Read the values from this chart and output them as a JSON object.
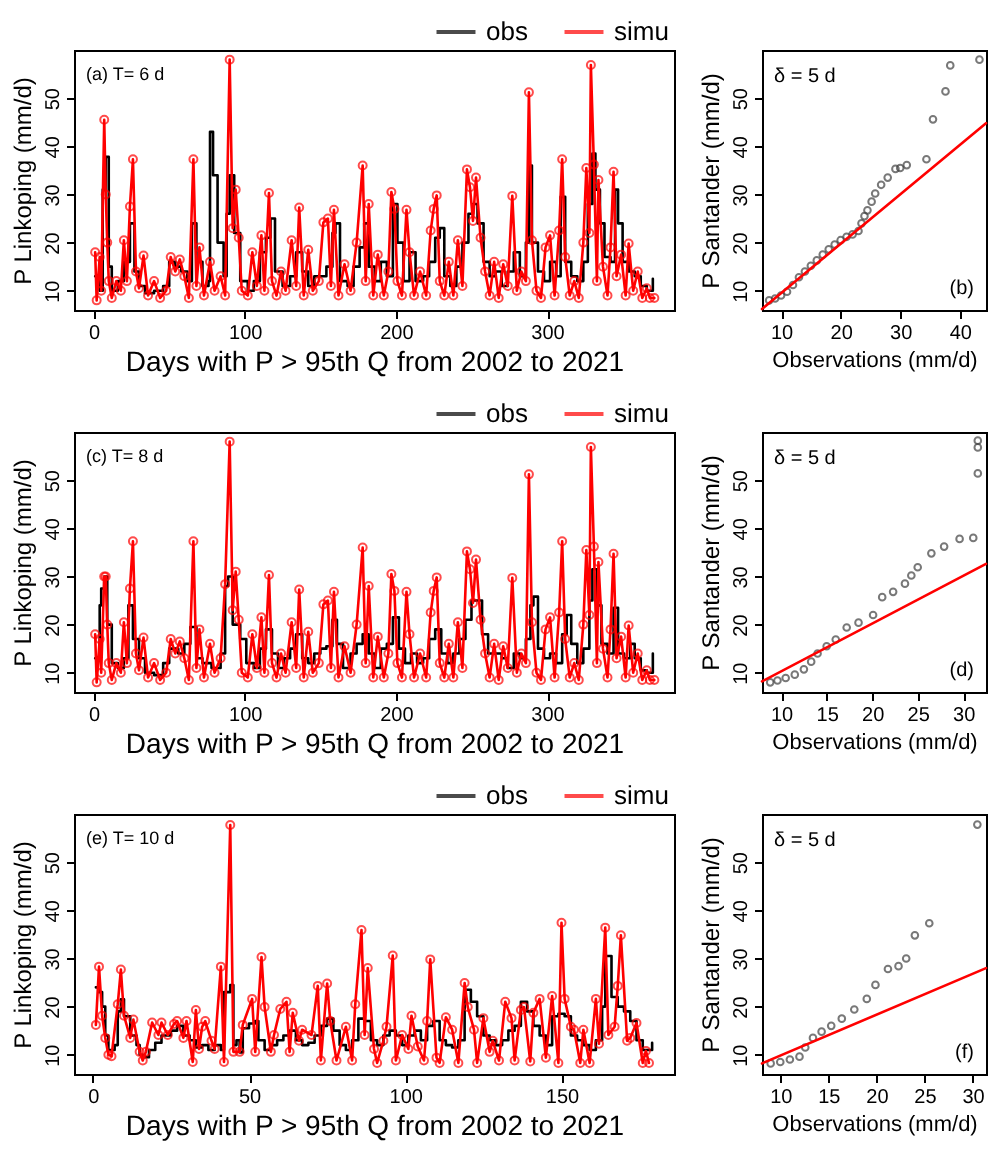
{
  "chart_data": [
    {
      "type": "line",
      "xlabel": "Days with P > 95th Q from 2002 to 2021",
      "ylabel": "P Linkoping (mm/d)",
      "annotations": [
        "(a)   T= 6 d"
      ],
      "xlim": [
        -13,
        384
      ],
      "ylim": [
        6,
        60
      ],
      "xticks": [
        0,
        100,
        200,
        300
      ],
      "yticks": [
        10,
        20,
        30,
        40,
        50
      ],
      "grid": false,
      "legend": "top right",
      "series": [
        {
          "name": "obs",
          "type": "step",
          "color": "#000000",
          "x": [
            1,
            4,
            6,
            8,
            10,
            12,
            16,
            20,
            24,
            27,
            30,
            34,
            40,
            46,
            50,
            54,
            58,
            62,
            65,
            68,
            72,
            76,
            77,
            79,
            82,
            86,
            88,
            90,
            93,
            97,
            102,
            106,
            110,
            114,
            117,
            120,
            125,
            130,
            134,
            138,
            142,
            146,
            150,
            154,
            158,
            160,
            163,
            168,
            172,
            176,
            179,
            182,
            186,
            190,
            194,
            198,
            201,
            205,
            209,
            213,
            218,
            222,
            226,
            229,
            232,
            236,
            240,
            244,
            248,
            251,
            254,
            258,
            262,
            266,
            270,
            274,
            278,
            282,
            286,
            288,
            290,
            294,
            298,
            302,
            306,
            309,
            312,
            316,
            320,
            324,
            327,
            330,
            332,
            335,
            338,
            342,
            345,
            347,
            350,
            354,
            358,
            362,
            366,
            370
          ],
          "values": [
            13,
            10,
            31,
            37.8,
            15,
            10,
            12,
            16,
            24,
            14,
            11,
            9.5,
            10,
            11,
            16,
            15,
            14,
            12,
            24,
            16,
            11,
            12,
            43,
            34,
            20,
            13,
            26,
            34,
            22,
            12,
            10,
            12,
            18,
            21,
            25,
            14,
            11,
            13,
            18,
            14,
            11,
            13,
            13,
            15,
            22,
            24,
            12,
            11,
            15,
            19,
            24,
            15,
            12,
            16,
            13,
            28,
            20,
            12,
            18,
            12,
            13,
            16,
            21,
            23,
            13,
            11,
            15,
            20,
            26,
            28,
            24,
            16,
            13,
            14,
            11,
            14,
            18,
            13,
            20,
            36,
            20,
            14,
            12,
            16,
            13,
            29.5,
            16,
            13,
            12,
            16,
            28,
            38.5,
            31,
            24,
            17,
            16,
            31,
            24,
            16,
            14,
            13,
            11,
            10,
            12.5
          ]
        },
        {
          "name": "simu",
          "marker": "circle",
          "color": "#ff0000",
          "x": [
            1,
            2,
            4,
            5,
            7,
            8,
            9,
            10,
            12,
            15,
            18,
            20,
            22,
            24,
            26,
            28,
            30,
            33,
            36,
            40,
            44,
            48,
            51,
            54,
            57,
            60,
            63,
            66,
            68,
            70,
            73,
            77,
            80,
            84,
            87,
            90,
            92,
            94,
            96,
            98,
            102,
            105,
            108,
            111,
            113,
            116,
            118,
            121,
            124,
            127,
            131,
            134,
            136,
            139,
            142,
            145,
            149,
            152,
            155,
            157,
            159,
            162,
            166,
            170,
            174,
            178,
            180,
            182,
            185,
            188,
            192,
            195,
            197,
            199,
            201,
            204,
            207,
            209,
            212,
            216,
            220,
            223,
            225,
            227,
            229,
            232,
            235,
            238,
            241,
            244,
            247,
            249,
            251,
            253,
            256,
            259,
            262,
            265,
            268,
            271,
            274,
            277,
            280,
            283,
            286,
            288,
            290,
            293,
            296,
            299,
            302,
            305,
            308,
            310,
            312,
            315,
            318,
            321,
            324,
            326,
            328,
            329,
            331,
            333,
            334,
            337,
            340,
            342,
            344,
            346,
            349,
            352,
            354,
            357,
            360,
            363,
            366,
            368,
            371
          ],
          "values": [
            18,
            8,
            17,
            10,
            45.5,
            30,
            20,
            12,
            8.5,
            12,
            10,
            20.5,
            12,
            27.5,
            37.3,
            14,
            10.5,
            17.3,
            9,
            12,
            8.5,
            10,
            17,
            14,
            16.5,
            13,
            8.5,
            37.3,
            11,
            19,
            9,
            16,
            10,
            13,
            9,
            58,
            23,
            31,
            21,
            10,
            9,
            18,
            11,
            21.5,
            10,
            30.3,
            12,
            9,
            14,
            10,
            20.5,
            11,
            27.3,
            9,
            18.5,
            10,
            12,
            24.2,
            25,
            11,
            26.8,
            9,
            15.5,
            10,
            20,
            36,
            12,
            28,
            9,
            17.5,
            9,
            14,
            30.5,
            27,
            12,
            9,
            26.8,
            18,
            9,
            14,
            9,
            22.5,
            27,
            29.8,
            12,
            9,
            16,
            9,
            20.5,
            11,
            35.2,
            31.5,
            24.5,
            33.5,
            21,
            14,
            9,
            16,
            8.5,
            15.5,
            11,
            29.7,
            10,
            14,
            12,
            51.2,
            20.5,
            10,
            8.5,
            19,
            21.5,
            9,
            22.5,
            37.3,
            17,
            9,
            12,
            8.5,
            20,
            35.5,
            22,
            56.9,
            36.2,
            12,
            33,
            15,
            9,
            19,
            34.7,
            13,
            17.5,
            9,
            19.8,
            10,
            14,
            8.5,
            10.5,
            8.5,
            8.5
          ]
        }
      ]
    },
    {
      "type": "scatter",
      "xlabel": "Observations (mm/d)",
      "ylabel": "P Santander (mm/d)",
      "annotations": [
        "δ = 5 d",
        "(b)"
      ],
      "xlim": [
        6.8,
        44.4
      ],
      "ylim": [
        6,
        60
      ],
      "xticks": [
        10,
        20,
        30,
        40
      ],
      "yticks": [
        10,
        20,
        30,
        40,
        50
      ],
      "grid": false,
      "series": [
        {
          "marker": "circle",
          "color": "#404040",
          "x": [
            8,
            9,
            10,
            11,
            12,
            13,
            14,
            15,
            16,
            17,
            18,
            19,
            20,
            21,
            22,
            23,
            23.5,
            24,
            24.5,
            25.2,
            25.8,
            26.8,
            27.9,
            29.2,
            30,
            31.1,
            34.4,
            35.5,
            37.6,
            38.4,
            43.3
          ],
          "values": [
            8,
            8.4,
            9,
            9.8,
            11.2,
            12.8,
            14,
            15.2,
            16.3,
            17.5,
            18.6,
            19.6,
            20.5,
            21.2,
            21.7,
            22.4,
            24,
            25.5,
            26.7,
            28.5,
            30.2,
            32,
            33.5,
            35.3,
            35.5,
            36.1,
            37.3,
            45.6,
            51.4,
            56.8,
            58
          ]
        },
        {
          "type": "line",
          "color": "#ff0000",
          "x": [
            6.8,
            44.4
          ],
          "values": [
            6.2,
            44.8
          ]
        }
      ]
    },
    {
      "type": "line",
      "xlabel": "Days with P > 95th Q from 2002 to 2021",
      "ylabel": "P Linkoping (mm/d)",
      "annotations": [
        "(c)   T= 8 d"
      ],
      "xlim": [
        -13,
        384
      ],
      "ylim": [
        6,
        60
      ],
      "xticks": [
        0,
        100,
        200,
        300
      ],
      "yticks": [
        10,
        20,
        30,
        40,
        50
      ],
      "grid": false,
      "legend": "top right",
      "series": [
        {
          "name": "obs",
          "type": "step",
          "color": "#000000",
          "x": [
            1,
            4,
            5,
            7,
            9,
            12,
            16,
            20,
            23,
            26,
            30,
            34,
            40,
            46,
            50,
            56,
            60,
            64,
            68,
            72,
            78,
            84,
            87,
            89,
            92,
            97,
            101,
            106,
            110,
            114,
            118,
            122,
            126,
            130,
            134,
            138,
            142,
            146,
            150,
            154,
            158,
            161,
            165,
            170,
            174,
            178,
            182,
            186,
            190,
            194,
            198,
            202,
            206,
            210,
            214,
            218,
            222,
            226,
            230,
            234,
            238,
            242,
            246,
            250,
            254,
            257,
            261,
            266,
            270,
            274,
            278,
            282,
            286,
            289,
            291,
            294,
            298,
            302,
            306,
            310,
            313,
            316,
            320,
            324,
            328,
            330,
            333,
            336,
            340,
            344,
            347,
            351,
            355,
            358,
            362,
            366,
            370
          ],
          "values": [
            13,
            24,
            27.5,
            30,
            20,
            12,
            11,
            13,
            24,
            17,
            13,
            10,
            9.5,
            12,
            15,
            14,
            16,
            19.5,
            13,
            12,
            11,
            14,
            28,
            30,
            20,
            17,
            12,
            11,
            15,
            19,
            14,
            11,
            13,
            15,
            18,
            13,
            12,
            14,
            15,
            15.5,
            21,
            16,
            11,
            14,
            16,
            18,
            14,
            11,
            15,
            16,
            21.5,
            15,
            12,
            14,
            12,
            13,
            17,
            19,
            14,
            12,
            14,
            17,
            21,
            25,
            25,
            18,
            14,
            14,
            13,
            11,
            14,
            13,
            17,
            24,
            25.8,
            15,
            13,
            14,
            12,
            18,
            22,
            16,
            12,
            15,
            25,
            31.5,
            24,
            16,
            14,
            23.5,
            14,
            13,
            16,
            13,
            10.5,
            10,
            14
          ]
        },
        {
          "name": "simu",
          "marker": "circle",
          "color": "#ff0000",
          "x": [
            1,
            2,
            4,
            5,
            7,
            8,
            9,
            10,
            12,
            15,
            18,
            20,
            22,
            24,
            26,
            28,
            30,
            33,
            36,
            40,
            44,
            48,
            51,
            54,
            57,
            60,
            63,
            66,
            68,
            70,
            73,
            77,
            80,
            84,
            87,
            90,
            92,
            94,
            96,
            98,
            102,
            105,
            108,
            111,
            113,
            116,
            118,
            121,
            124,
            127,
            131,
            134,
            136,
            139,
            142,
            145,
            149,
            152,
            155,
            157,
            159,
            162,
            166,
            170,
            174,
            178,
            180,
            182,
            185,
            188,
            192,
            195,
            197,
            199,
            201,
            204,
            207,
            209,
            212,
            216,
            220,
            223,
            225,
            227,
            229,
            232,
            235,
            238,
            241,
            244,
            247,
            249,
            251,
            253,
            256,
            259,
            262,
            265,
            268,
            271,
            274,
            277,
            280,
            283,
            286,
            288,
            290,
            293,
            296,
            299,
            302,
            305,
            308,
            310,
            312,
            315,
            318,
            321,
            324,
            326,
            328,
            329,
            331,
            333,
            334,
            337,
            340,
            342,
            344,
            346,
            349,
            352,
            354,
            357,
            360,
            363,
            366,
            368,
            371
          ],
          "values": [
            18,
            8,
            17,
            10,
            30,
            30,
            20,
            12,
            8.5,
            12,
            10,
            20.5,
            12,
            27.5,
            37.3,
            14,
            10.5,
            17.3,
            9,
            12,
            8.5,
            10,
            17,
            14,
            16.5,
            13,
            8.5,
            37.3,
            11,
            19,
            9,
            16,
            10,
            13,
            28.4,
            58,
            23,
            31,
            21,
            10,
            9,
            18,
            11,
            21.5,
            10,
            30.3,
            12,
            9,
            14,
            10,
            20.5,
            11,
            27.3,
            9,
            18.5,
            10,
            12,
            24.2,
            25,
            11,
            26.8,
            9,
            15.5,
            10,
            20,
            36,
            12,
            28,
            9,
            17.5,
            9,
            14,
            30.5,
            27,
            12,
            9,
            26.8,
            18,
            9,
            14,
            9,
            22.5,
            27,
            29.8,
            12,
            9,
            16,
            9,
            20.5,
            11,
            35.2,
            31.5,
            24.5,
            33.5,
            21,
            14,
            9,
            16,
            8.5,
            15.5,
            11,
            29.7,
            10,
            14,
            12,
            51.2,
            20.5,
            10,
            8.5,
            19,
            21.5,
            9,
            22.5,
            37.3,
            17,
            9,
            12,
            8.5,
            20,
            35.5,
            22,
            56.9,
            36.2,
            12,
            33,
            15,
            9,
            19,
            34.7,
            13,
            17.5,
            9,
            19.8,
            10,
            14,
            8.5,
            10.5,
            8.5,
            8.5
          ]
        }
      ]
    },
    {
      "type": "scatter",
      "xlabel": "Observations (mm/d)",
      "ylabel": "P Santander (mm/d)",
      "annotations": [
        "δ = 5 d",
        "(d)"
      ],
      "xlim": [
        7.9,
        32.5
      ],
      "ylim": [
        6,
        60
      ],
      "xticks": [
        10,
        15,
        20,
        25,
        30
      ],
      "yticks": [
        10,
        20,
        30,
        40,
        50
      ],
      "grid": false,
      "series": [
        {
          "marker": "circle",
          "color": "#404040",
          "x": [
            8.8,
            9.6,
            10.5,
            11.5,
            12.5,
            13.3,
            14,
            15,
            16,
            17.2,
            18.5,
            20.1,
            21.1,
            22.3,
            23.6,
            24.3,
            25,
            26.5,
            27.9,
            29.6,
            31.1,
            31.6,
            31.6,
            31.6
          ],
          "values": [
            8,
            8.4,
            8.9,
            9.6,
            10.7,
            12.3,
            14,
            15.5,
            16.9,
            19.4,
            20.4,
            22,
            25.7,
            26.8,
            28.5,
            30.2,
            31.9,
            34.8,
            36.2,
            37.8,
            38,
            51.4,
            56.8,
            58.2
          ]
        },
        {
          "type": "line",
          "color": "#ff0000",
          "x": [
            7.9,
            32.5
          ],
          "values": [
            8.2,
            32.6
          ]
        }
      ]
    },
    {
      "type": "line",
      "xlabel": "Days with P > 95th Q from 2002 to 2021",
      "ylabel": "P Linkoping (mm/d)",
      "annotations": [
        "(e)   T= 10 d"
      ],
      "xlim": [
        -6,
        186
      ],
      "ylim": [
        6,
        60
      ],
      "xticks": [
        0,
        50,
        100,
        150
      ],
      "yticks": [
        10,
        20,
        30,
        40,
        50
      ],
      "grid": false,
      "legend": "top right",
      "series": [
        {
          "name": "obs",
          "type": "step",
          "color": "#000000",
          "x": [
            1,
            2,
            3,
            4,
            5,
            7,
            8,
            9,
            10,
            12,
            14,
            15,
            16,
            18,
            20,
            22,
            25,
            27,
            29,
            31,
            33,
            35,
            37,
            39,
            41,
            42,
            44,
            45,
            46,
            47,
            48,
            50,
            52,
            53,
            55,
            57,
            59,
            61,
            63,
            65,
            67,
            69,
            71,
            73,
            75,
            77,
            79,
            81,
            83,
            85,
            87,
            89,
            91,
            93,
            95,
            97,
            99,
            101,
            103,
            105,
            107,
            109,
            111,
            113,
            115,
            117,
            119,
            121,
            123,
            125,
            127,
            129,
            131,
            133,
            135,
            137,
            139,
            141,
            143,
            145,
            147,
            149,
            151,
            153,
            155,
            157,
            159,
            161,
            163,
            164,
            166,
            168,
            170,
            172,
            174,
            176,
            178,
            179
          ],
          "values": [
            24,
            23,
            20,
            14,
            11,
            12,
            19,
            21.5,
            18,
            14,
            12,
            10,
            9.5,
            11,
            12.5,
            14,
            15,
            16,
            14,
            13,
            11.5,
            12,
            11,
            12,
            11,
            23,
            24.5,
            12,
            13,
            10.5,
            15.5,
            16.5,
            17,
            13,
            11,
            12,
            13,
            14,
            15,
            13,
            12,
            12.5,
            14,
            16,
            17.5,
            15,
            12,
            11,
            13,
            17.5,
            17,
            13,
            12,
            14,
            15,
            14,
            12,
            14,
            15,
            13,
            16,
            17,
            13,
            12,
            11.5,
            13,
            23.5,
            21,
            18,
            14,
            13,
            12,
            13,
            15,
            16,
            21,
            19,
            16,
            14,
            12,
            18,
            18.5,
            18,
            14,
            13,
            12,
            11,
            13,
            20,
            30.5,
            22,
            20,
            19,
            17,
            13,
            11,
            11,
            12.5
          ]
        },
        {
          "name": "simu",
          "marker": "circle",
          "color": "#ff0000",
          "x": [
            1,
            2,
            3,
            4,
            5,
            6,
            8,
            9,
            10,
            12,
            13,
            15,
            16,
            17,
            19,
            21,
            22,
            24,
            26,
            27,
            29,
            30,
            32,
            33,
            34,
            35,
            36,
            38,
            39,
            41,
            42,
            44,
            45,
            47,
            48,
            51,
            52,
            54,
            55,
            57,
            58,
            60,
            62,
            63,
            64,
            66,
            67,
            70,
            72,
            73,
            75,
            76,
            78,
            81,
            83,
            84,
            86,
            87,
            88,
            90,
            91,
            93,
            94,
            96,
            97,
            99,
            101,
            102,
            104,
            106,
            107,
            108,
            110,
            111,
            113,
            115,
            117,
            119,
            120,
            122,
            123,
            125,
            127,
            128,
            130,
            132,
            134,
            135,
            137,
            138,
            140,
            141,
            143,
            145,
            147,
            149,
            150,
            151,
            153,
            154,
            156,
            157,
            159,
            161,
            162,
            164,
            165,
            167,
            168,
            169,
            171,
            172,
            174,
            176,
            177,
            178
          ],
          "values": [
            16.2,
            28.3,
            18.1,
            13.5,
            10,
            9.7,
            20.5,
            27.7,
            18.1,
            13.5,
            17.3,
            10.6,
            8.8,
            10.6,
            16.7,
            14.1,
            16.7,
            14.1,
            16.4,
            17,
            13.5,
            17,
            8.5,
            19.3,
            11.2,
            15.8,
            17,
            12.9,
            11.2,
            28.3,
            8.5,
            57.7,
            10.6,
            10.6,
            16.2,
            21.6,
            10.6,
            30.3,
            19.9,
            10.6,
            14.1,
            19.5,
            21,
            10.6,
            18.7,
            12.9,
            15.2,
            14.1,
            24.3,
            8.8,
            24.8,
            17,
            8.8,
            15.8,
            8.8,
            20.5,
            35.9,
            14.1,
            28,
            11.2,
            8.3,
            12.9,
            15.8,
            30.6,
            8.8,
            14.1,
            11.2,
            18.1,
            11.7,
            8.8,
            17,
            29.8,
            9.4,
            8.3,
            17.8,
            15.2,
            8.3,
            24.9,
            19.9,
            15.2,
            8.3,
            17.6,
            10.6,
            12.9,
            8.8,
            21,
            17.6,
            8.8,
            19.3,
            19.9,
            8.6,
            18.7,
            21.6,
            9.4,
            22.2,
            8.3,
            37.4,
            21.6,
            15.8,
            15.2,
            8.3,
            15.2,
            8.3,
            21.6,
            12.3,
            36.4,
            14.1,
            15.8,
            24.3,
            34.8,
            12.9,
            13.5,
            16.6,
            8.3,
            10.8,
            8.3
          ]
        }
      ]
    },
    {
      "type": "scatter",
      "xlabel": "Observations (mm/d)",
      "ylabel": "P Santander (mm/d)",
      "annotations": [
        "δ = 5 d",
        "(f)"
      ],
      "xlim": [
        8.1,
        31.4
      ],
      "ylim": [
        6,
        60
      ],
      "xticks": [
        10,
        15,
        20,
        25,
        30
      ],
      "yticks": [
        10,
        20,
        30,
        40,
        50
      ],
      "grid": false,
      "series": [
        {
          "marker": "circle",
          "color": "#404040",
          "x": [
            9,
            10,
            11,
            12,
            12.6,
            13.4,
            14.3,
            15.3,
            16.4,
            17.7,
            19,
            19.9,
            21.2,
            22.3,
            23.1,
            24,
            25.5,
            30.5
          ],
          "values": [
            8.2,
            8.5,
            9,
            9.6,
            11.5,
            13.5,
            14.8,
            16,
            17.5,
            19.4,
            21.6,
            24.5,
            27.8,
            28.4,
            30,
            34.8,
            37.3,
            57.8
          ]
        },
        {
          "type": "line",
          "color": "#ff0000",
          "x": [
            8.1,
            31.4
          ],
          "values": [
            8.2,
            28.0
          ]
        }
      ]
    }
  ]
}
